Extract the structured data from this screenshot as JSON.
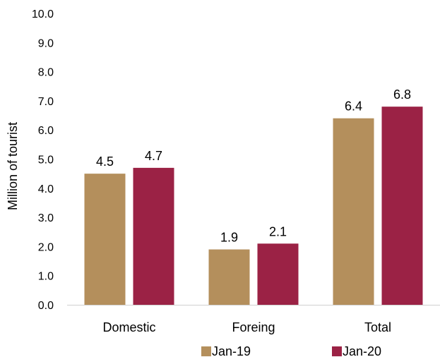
{
  "chart_data": {
    "type": "bar",
    "title": "",
    "xlabel": "",
    "ylabel": "Million of tourist",
    "ylim": [
      0,
      10
    ],
    "yticks": [
      "0.0",
      "1.0",
      "2.0",
      "3.0",
      "4.0",
      "5.0",
      "6.0",
      "7.0",
      "8.0",
      "9.0",
      "10.0"
    ],
    "categories": [
      "Domestic",
      "Foreing",
      "Total"
    ],
    "series": [
      {
        "name": "Jan-19",
        "values": [
          4.5,
          1.9,
          6.4
        ],
        "labels": [
          "4.5",
          "1.9",
          "6.4"
        ],
        "color": "#b48f5c"
      },
      {
        "name": "Jan-20",
        "values": [
          4.7,
          2.1,
          6.8
        ],
        "labels": [
          "4.7",
          "2.1",
          "6.8"
        ],
        "color": "#9b2245"
      }
    ],
    "grid": false,
    "legend_position": "bottom"
  }
}
